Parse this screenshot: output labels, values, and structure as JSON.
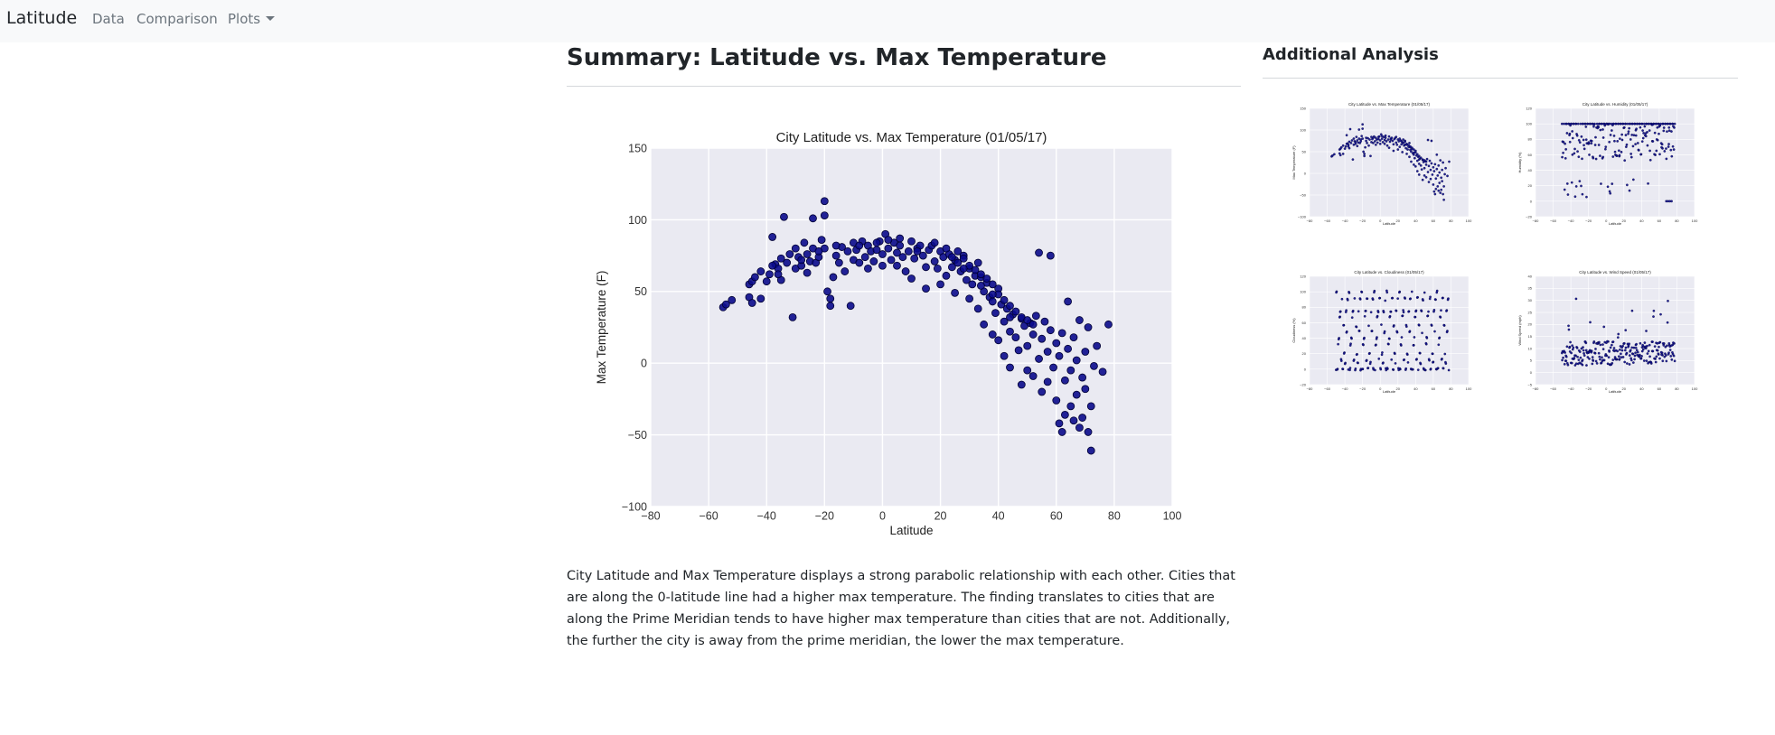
{
  "navbar": {
    "brand": "Latitude",
    "links": [
      "Data",
      "Comparison",
      "Plots"
    ]
  },
  "main": {
    "title": "Summary: Latitude vs. Max Temperature",
    "description": "City Latitude and Max Temperature displays a strong parabolic relationship with each other. Cities that are along the 0-latitude line had a higher max temperature. The finding translates to cities that are along the Prime Meridian tends to have higher max temperature than cities that are not. Additionally, the further the city is away from the prime meridian, the lower the max temperature."
  },
  "sidebar": {
    "title": "Additional Analysis"
  },
  "colors": {
    "navbar_bg": "#f8f9fa",
    "plot_bg": "#eaeaf2",
    "marker": "#0b0b8c",
    "marker_edge": "#000033"
  },
  "chart_data": [
    {
      "type": "scatter",
      "title": "City Latitude vs. Max Temperature (01/05/17)",
      "xlabel": "Latitude",
      "ylabel": "Max Temperature (F)",
      "xlim": [
        -80,
        100
      ],
      "ylim": [
        -100,
        150
      ],
      "xticks": [
        -80,
        -60,
        -40,
        -20,
        0,
        20,
        40,
        60,
        80,
        100
      ],
      "yticks": [
        -100,
        -50,
        0,
        50,
        100,
        150
      ],
      "grid": true,
      "points": [
        [
          -55,
          39
        ],
        [
          -54,
          41
        ],
        [
          -52,
          44
        ],
        [
          -46,
          55
        ],
        [
          -45,
          57
        ],
        [
          -44,
          60
        ],
        [
          -46,
          46
        ],
        [
          -45,
          42
        ],
        [
          -42,
          64
        ],
        [
          -42,
          45
        ],
        [
          -40,
          57
        ],
        [
          -39,
          62
        ],
        [
          -38,
          88
        ],
        [
          -37,
          69
        ],
        [
          -36,
          66
        ],
        [
          -35,
          73
        ],
        [
          -35,
          58
        ],
        [
          -34,
          102
        ],
        [
          -33,
          70
        ],
        [
          -32,
          76
        ],
        [
          -31,
          32
        ],
        [
          -30,
          66
        ],
        [
          -30,
          80
        ],
        [
          -29,
          74
        ],
        [
          -28,
          68
        ],
        [
          -27,
          84
        ],
        [
          -26,
          63
        ],
        [
          -26,
          76
        ],
        [
          -25,
          71
        ],
        [
          -24,
          80
        ],
        [
          -24,
          101
        ],
        [
          -23,
          70
        ],
        [
          -22,
          74
        ],
        [
          -21,
          86
        ],
        [
          -20,
          113
        ],
        [
          -20,
          103
        ],
        [
          -20,
          80
        ],
        [
          -19,
          50
        ],
        [
          -18,
          45
        ],
        [
          -18,
          40
        ],
        [
          -17,
          60
        ],
        [
          -16,
          75
        ],
        [
          -15,
          70
        ],
        [
          -14,
          81
        ],
        [
          -13,
          64
        ],
        [
          -12,
          78
        ],
        [
          -11,
          40
        ],
        [
          -10,
          72
        ],
        [
          -10,
          84
        ],
        [
          -9,
          79
        ],
        [
          -8,
          70
        ],
        [
          -7,
          85
        ],
        [
          -6,
          74
        ],
        [
          -5,
          66
        ],
        [
          -5,
          82
        ],
        [
          -4,
          78
        ],
        [
          -3,
          71
        ],
        [
          -2,
          79
        ],
        [
          -1,
          85
        ],
        [
          0,
          76
        ],
        [
          0,
          68
        ],
        [
          1,
          90
        ],
        [
          2,
          80
        ],
        [
          3,
          72
        ],
        [
          4,
          84
        ],
        [
          5,
          77
        ],
        [
          5,
          68
        ],
        [
          6,
          87
        ],
        [
          7,
          74
        ],
        [
          8,
          64
        ],
        [
          9,
          78
        ],
        [
          10,
          85
        ],
        [
          10,
          59
        ],
        [
          11,
          73
        ],
        [
          12,
          80
        ],
        [
          13,
          82
        ],
        [
          14,
          75
        ],
        [
          15,
          67
        ],
        [
          15,
          52
        ],
        [
          16,
          79
        ],
        [
          17,
          82
        ],
        [
          18,
          71
        ],
        [
          19,
          66
        ],
        [
          20,
          78
        ],
        [
          20,
          55
        ],
        [
          21,
          74
        ],
        [
          22,
          61
        ],
        [
          23,
          76
        ],
        [
          24,
          67
        ],
        [
          25,
          49
        ],
        [
          25,
          72
        ],
        [
          26,
          70
        ],
        [
          27,
          64
        ],
        [
          28,
          75
        ],
        [
          29,
          58
        ],
        [
          30,
          66
        ],
        [
          30,
          45
        ],
        [
          31,
          55
        ],
        [
          32,
          61
        ],
        [
          33,
          70
        ],
        [
          33,
          38
        ],
        [
          34,
          60
        ],
        [
          35,
          50
        ],
        [
          35,
          27
        ],
        [
          36,
          56
        ],
        [
          37,
          46
        ],
        [
          38,
          43
        ],
        [
          38,
          20
        ],
        [
          39,
          35
        ],
        [
          40,
          52
        ],
        [
          40,
          16
        ],
        [
          41,
          41
        ],
        [
          42,
          29
        ],
        [
          42,
          5
        ],
        [
          43,
          38
        ],
        [
          44,
          22
        ],
        [
          44,
          -3
        ],
        [
          45,
          34
        ],
        [
          46,
          18
        ],
        [
          47,
          9
        ],
        [
          48,
          31
        ],
        [
          48,
          -15
        ],
        [
          49,
          26
        ],
        [
          50,
          12
        ],
        [
          50,
          -5
        ],
        [
          51,
          28
        ],
        [
          52,
          20
        ],
        [
          52,
          -9
        ],
        [
          53,
          33
        ],
        [
          54,
          77
        ],
        [
          54,
          3
        ],
        [
          55,
          17
        ],
        [
          55,
          -20
        ],
        [
          56,
          29
        ],
        [
          57,
          8
        ],
        [
          57,
          -13
        ],
        [
          58,
          75
        ],
        [
          58,
          23
        ],
        [
          59,
          -3
        ],
        [
          60,
          14
        ],
        [
          60,
          -26
        ],
        [
          61,
          5
        ],
        [
          61,
          -42
        ],
        [
          62,
          21
        ],
        [
          62,
          -48
        ],
        [
          63,
          -12
        ],
        [
          63,
          -36
        ],
        [
          64,
          10
        ],
        [
          64,
          43
        ],
        [
          65,
          -5
        ],
        [
          65,
          -30
        ],
        [
          66,
          -40
        ],
        [
          66,
          18
        ],
        [
          67,
          2
        ],
        [
          67,
          -22
        ],
        [
          68,
          -45
        ],
        [
          68,
          30
        ],
        [
          69,
          -10
        ],
        [
          69,
          -38
        ],
        [
          70,
          -18
        ],
        [
          70,
          8
        ],
        [
          71,
          -48
        ],
        [
          71,
          25
        ],
        [
          72,
          -30
        ],
        [
          72,
          -61
        ],
        [
          73,
          -2
        ],
        [
          74,
          12
        ],
        [
          76,
          -6
        ],
        [
          78,
          27
        ],
        [
          24,
          74
        ],
        [
          26,
          78
        ],
        [
          28,
          73
        ],
        [
          30,
          68
        ],
        [
          32,
          65
        ],
        [
          34,
          62
        ],
        [
          36,
          59
        ],
        [
          38,
          55
        ],
        [
          40,
          48
        ],
        [
          42,
          44
        ],
        [
          44,
          40
        ],
        [
          46,
          36
        ],
        [
          48,
          32
        ],
        [
          50,
          30
        ],
        [
          52,
          27
        ],
        [
          -38,
          68
        ],
        [
          -36,
          62
        ],
        [
          -28,
          72
        ],
        [
          -22,
          78
        ],
        [
          -16,
          82
        ],
        [
          -8,
          82
        ],
        [
          -2,
          84
        ],
        [
          2,
          86
        ],
        [
          6,
          82
        ],
        [
          12,
          78
        ],
        [
          18,
          84
        ],
        [
          22,
          80
        ],
        [
          28,
          66
        ],
        [
          34,
          54
        ],
        [
          38,
          48
        ],
        [
          44,
          32
        ]
      ]
    },
    {
      "type": "scatter",
      "title": "City Latitude vs. Max Temperature (01/05/17)",
      "xlabel": "Latitude",
      "ylabel": "Max Temperature (F)",
      "xlim": [
        -80,
        100
      ],
      "ylim": [
        -100,
        150
      ]
    },
    {
      "type": "scatter",
      "title": "City Latitude vs. Humidity (01/05/17)",
      "xlabel": "Latitude",
      "ylabel": "Humidity (%)",
      "xlim": [
        -80,
        100
      ],
      "ylim": [
        -20,
        120
      ]
    },
    {
      "type": "scatter",
      "title": "City Latitude vs. Cloudiness (01/05/17)",
      "xlabel": "Latitude",
      "ylabel": "Cloudiness (%)",
      "xlim": [
        -80,
        100
      ],
      "ylim": [
        -20,
        120
      ]
    },
    {
      "type": "scatter",
      "title": "City Latitude vs. Wind Speed (01/05/17)",
      "xlabel": "Latitude",
      "ylabel": "Wind Speed (mph)",
      "xlim": [
        -80,
        100
      ],
      "ylim": [
        -5,
        40
      ]
    }
  ]
}
